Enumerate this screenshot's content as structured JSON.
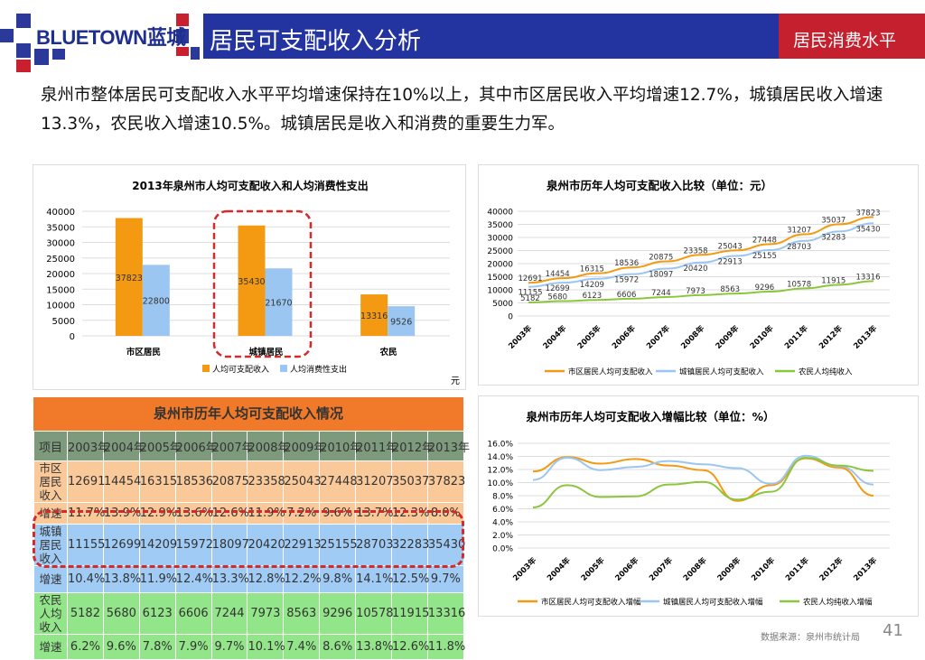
{
  "header": {
    "logo_text": "BLUETOWN蓝城",
    "title": "居民可支配收入分析",
    "section": "居民消费水平"
  },
  "intro": "泉州市整体居民可支配收入水平平均增速保持在10%以上，其中市区居民收入平均增速12.7%，城镇居民收入增速13.3%，农民收入增速10.5%。城镇居民是收入和消费的重要生力军。",
  "colors": {
    "orange": "#f39a12",
    "blue": "#9cc6f2",
    "green": "#8cc63e",
    "header_blue": "#2334a0",
    "header_red": "#c4202e"
  },
  "chart_data": [
    {
      "type": "bar",
      "title": "2013年泉州市人均可支配收入和人均消费性支出",
      "categories": [
        "市区居民",
        "城镇居民",
        "农民"
      ],
      "series": [
        {
          "name": "人均可支配收入",
          "values": [
            37823,
            35430,
            13316
          ]
        },
        {
          "name": "人均消费性支出",
          "values": [
            22800,
            21670,
            9526
          ]
        }
      ],
      "ylim": [
        0,
        40000
      ],
      "yticks": [
        "0",
        "5000",
        "10000",
        "15000",
        "20000",
        "25000",
        "30000",
        "35000",
        "40000"
      ],
      "unit": "元",
      "legend": "bottom",
      "grid": true,
      "highlight": "城镇居民"
    },
    {
      "type": "line",
      "title": "泉州市历年人均可支配收入比较（单位：元）",
      "categories": [
        "2003年",
        "2004年",
        "2005年",
        "2006年",
        "2007年",
        "2008年",
        "2009年",
        "2010年",
        "2011年",
        "2012年",
        "2013年"
      ],
      "series": [
        {
          "name": "市区居民人均可支配收入",
          "values": [
            12691,
            14454,
            16315,
            18536,
            20875,
            23358,
            25043,
            27448,
            31207,
            35037,
            37823
          ]
        },
        {
          "name": "城镇居民人均可支配收入",
          "values": [
            11155,
            12699,
            14209,
            15972,
            18097,
            20420,
            22913,
            25155,
            28703,
            32283,
            35430
          ]
        },
        {
          "name": "农民人均纯收入",
          "values": [
            5182,
            5680,
            6123,
            6606,
            7244,
            7973,
            8563,
            9296,
            10578,
            11915,
            13316
          ]
        }
      ],
      "ylim": [
        0,
        40000
      ],
      "yticks": [
        "0",
        "5000",
        "10000",
        "15000",
        "20000",
        "25000",
        "30000",
        "35000",
        "40000"
      ],
      "legend": "bottom",
      "grid": true
    },
    {
      "type": "line",
      "title": "泉州市历年人均可支配收入增幅比较（单位：%）",
      "categories": [
        "2003年",
        "2004年",
        "2005年",
        "2006年",
        "2007年",
        "2008年",
        "2009年",
        "2010年",
        "2011年",
        "2012年",
        "2013年"
      ],
      "series": [
        {
          "name": "市区居民人均可支配收入增幅",
          "values": [
            11.7,
            13.9,
            12.9,
            13.6,
            12.6,
            11.9,
            7.2,
            9.6,
            13.7,
            12.3,
            8.0
          ]
        },
        {
          "name": "城镇居民人均可支配收入增幅",
          "values": [
            10.4,
            13.8,
            11.9,
            12.4,
            13.3,
            12.8,
            12.2,
            9.8,
            14.1,
            12.5,
            9.7
          ]
        },
        {
          "name": "农民人均纯收入增幅",
          "values": [
            6.2,
            9.6,
            7.8,
            7.9,
            9.7,
            10.1,
            7.4,
            8.6,
            13.8,
            12.6,
            11.8
          ]
        }
      ],
      "ylim": [
        0,
        16
      ],
      "yticks": [
        "0.0%",
        "2.0%",
        "4.0%",
        "6.0%",
        "8.0%",
        "10.0%",
        "12.0%",
        "14.0%",
        "16.0%"
      ],
      "legend": "bottom",
      "grid": true
    }
  ],
  "table": {
    "title": "泉州市历年人均可支配收入情况",
    "header": [
      "项目",
      "2003年",
      "2004年",
      "2005年",
      "2006年",
      "2007年",
      "2008年",
      "2009年",
      "2010年",
      "2011年",
      "2012年",
      "2013年"
    ],
    "rows": [
      {
        "label": "市区居民收入",
        "cells": [
          "12691",
          "14454",
          "16315",
          "18536",
          "20875",
          "23358",
          "25043",
          "27448",
          "31207",
          "35037",
          "37823"
        ]
      },
      {
        "label": "增速",
        "cells": [
          "11.7%",
          "13.9%",
          "12.9%",
          "13.6%",
          "12.6%",
          "11.9%",
          "7.2%",
          "9.6%",
          "13.7%",
          "12.3%",
          "8.0%"
        ]
      },
      {
        "label": "城镇居民收入",
        "cells": [
          "11155",
          "12699",
          "14209",
          "15972",
          "18097",
          "20420",
          "22913",
          "25155",
          "28703",
          "32283",
          "35430"
        ]
      },
      {
        "label": "增速",
        "cells": [
          "10.4%",
          "13.8%",
          "11.9%",
          "12.4%",
          "13.3%",
          "12.8%",
          "12.2%",
          "9.8%",
          "14.1%",
          "12.5%",
          "9.7%"
        ]
      },
      {
        "label": "农民人均收入",
        "cells": [
          "5182",
          "5680",
          "6123",
          "6606",
          "7244",
          "7973",
          "8563",
          "9296",
          "10578",
          "11915",
          "13316"
        ]
      },
      {
        "label": "增速",
        "cells": [
          "6.2%",
          "9.6%",
          "7.8%",
          "7.9%",
          "9.7%",
          "10.1%",
          "7.4%",
          "8.6%",
          "13.8%",
          "12.6%",
          "11.8%"
        ]
      }
    ]
  },
  "footer": {
    "source": "数据来源：泉州市统计局",
    "page": "41"
  }
}
